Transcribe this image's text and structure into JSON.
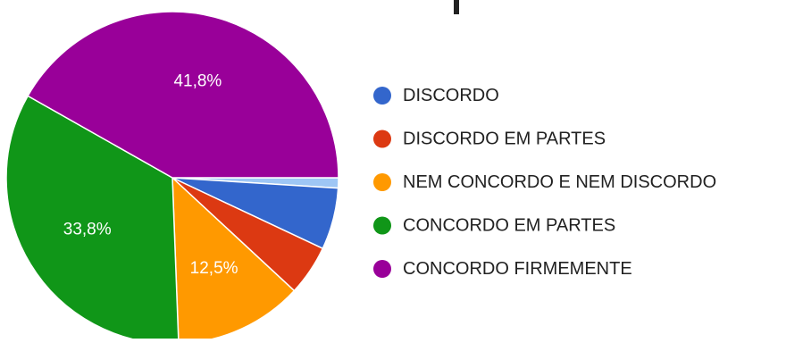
{
  "chart_data": {
    "type": "pie",
    "slices": [
      {
        "label": "",
        "value": 1.0,
        "color": "#9ec6f5",
        "data_label": ""
      },
      {
        "label": "DISCORDO",
        "value": 6.0,
        "color": "#3366cc",
        "data_label": ""
      },
      {
        "label": "DISCORDO EM PARTES",
        "value": 4.9,
        "color": "#dc3912",
        "data_label": ""
      },
      {
        "label": "NEM CONCORDO E NEM DISCORDO",
        "value": 12.5,
        "color": "#ff9900",
        "data_label": "12,5%"
      },
      {
        "label": "CONCORDO EM PARTES",
        "value": 33.8,
        "color": "#109618",
        "data_label": "33,8%"
      },
      {
        "label": "CONCORDO FIRMEMENTE",
        "value": 41.8,
        "color": "#990099",
        "data_label": "41,8%"
      }
    ],
    "legend": {
      "position": "right",
      "items": [
        {
          "label": "DISCORDO",
          "color": "#3366cc"
        },
        {
          "label": "DISCORDO EM PARTES",
          "color": "#dc3912"
        },
        {
          "label": "NEM CONCORDO E NEM DISCORDO",
          "color": "#ff9900"
        },
        {
          "label": "CONCORDO EM PARTES",
          "color": "#109618"
        },
        {
          "label": "CONCORDO FIRMEMENTE",
          "color": "#990099"
        }
      ]
    },
    "data_label_color": "#ffffff"
  }
}
